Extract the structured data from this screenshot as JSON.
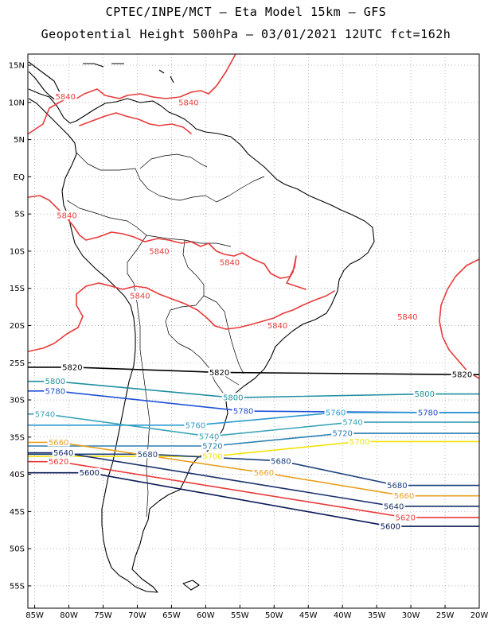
{
  "header": {
    "line1": "CPTEC/INPE/MCT –  Eta Model 15km – GFS",
    "line2": "Geopotential Height 500hPa – 03/01/2021 12UTC fct=162h"
  },
  "axes": {
    "lat_labels": [
      "15N",
      "10N",
      "5N",
      "EQ",
      "5S",
      "10S",
      "15S",
      "20S",
      "25S",
      "30S",
      "35S",
      "40S",
      "45S",
      "50S",
      "55S"
    ],
    "lat_values": [
      15,
      10,
      5,
      0,
      -5,
      -10,
      -15,
      -20,
      -25,
      -30,
      -35,
      -40,
      -45,
      -50,
      -55
    ],
    "lon_labels": [
      "85W",
      "80W",
      "75W",
      "70W",
      "65W",
      "60W",
      "55W",
      "50W",
      "45W",
      "40W",
      "35W",
      "30W",
      "25W",
      "20W"
    ],
    "lon_values": [
      -85,
      -80,
      -75,
      -70,
      -65,
      -60,
      -55,
      -50,
      -45,
      -40,
      -35,
      -30,
      -25,
      -20
    ],
    "lat_range": [
      -58,
      16.5
    ],
    "lon_range": [
      -86,
      -20
    ],
    "grid": "dotted"
  },
  "contours": [
    {
      "level": "5840",
      "color": "#e83a3a",
      "labels": [
        [
          -80.5,
          10.8
        ],
        [
          -62.5,
          10
        ],
        [
          -80.3,
          -5.2
        ],
        [
          -66.8,
          -10
        ],
        [
          -56.5,
          -11.5
        ],
        [
          -69.6,
          -16
        ],
        [
          -49.5,
          -20
        ],
        [
          -30.5,
          -18.8
        ]
      ]
    },
    {
      "level": "5820",
      "color": "#000000",
      "labels": [
        [
          -79.5,
          -25.6
        ],
        [
          -58,
          -26.3
        ],
        [
          -22.5,
          -26.6
        ]
      ]
    },
    {
      "level": "5800",
      "color": "#1f8fa0",
      "labels": [
        [
          -82,
          -27.5
        ],
        [
          -56,
          -29.7
        ],
        [
          -28,
          -29.2
        ]
      ]
    },
    {
      "level": "5780",
      "color": "#1d4fd8",
      "labels": [
        [
          -82,
          -28.8
        ],
        [
          -54.5,
          -31.5
        ],
        [
          -27.5,
          -31.7
        ]
      ]
    },
    {
      "level": "5760",
      "color": "#2a9ad0",
      "labels": [
        [
          -61.5,
          -33.4
        ],
        [
          -41,
          -31.7
        ]
      ]
    },
    {
      "level": "5740",
      "color": "#3aa3b8",
      "labels": [
        [
          -83.5,
          -31.9
        ],
        [
          -59.5,
          -34.9
        ],
        [
          -38.5,
          -33
        ]
      ]
    },
    {
      "level": "5720",
      "color": "#2a7fb0",
      "labels": [
        [
          -59,
          -36.2
        ],
        [
          -40,
          -34.5
        ]
      ]
    },
    {
      "level": "5700",
      "color": "#f2e20a",
      "labels": [
        [
          -59,
          -37.6
        ],
        [
          -37.5,
          -35.6
        ]
      ]
    },
    {
      "level": "5680",
      "color": "#1a3f7a",
      "labels": [
        [
          -68.5,
          -37.3
        ],
        [
          -49,
          -38.2
        ],
        [
          -32,
          -41.5
        ]
      ]
    },
    {
      "level": "5660",
      "color": "#e8a020",
      "labels": [
        [
          -81.5,
          -35.7
        ],
        [
          -51.5,
          -39.8
        ],
        [
          -31,
          -42.9
        ]
      ]
    },
    {
      "level": "5640",
      "color": "#1a2f6a",
      "labels": [
        [
          -80.8,
          -37.1
        ],
        [
          -32.5,
          -44.3
        ]
      ]
    },
    {
      "level": "5620",
      "color": "#e83a3a",
      "labels": [
        [
          -81.5,
          -38.3
        ],
        [
          -30.8,
          -45.8
        ]
      ]
    },
    {
      "level": "5600",
      "color": "#0a1a55",
      "labels": [
        [
          -77,
          -39.8
        ],
        [
          -33,
          -47
        ]
      ]
    }
  ]
}
